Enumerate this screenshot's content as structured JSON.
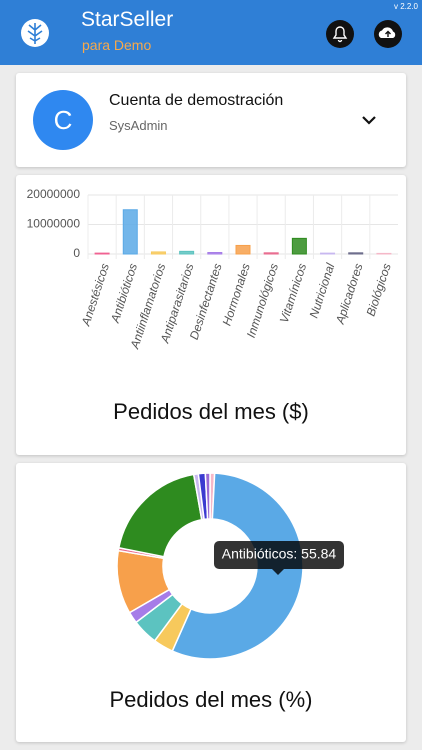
{
  "header": {
    "title": "StarSeller",
    "subtitle": "para Demo",
    "version": "v 2.2.0"
  },
  "account": {
    "initial": "C",
    "name": "Cuenta de demostración",
    "role": "SysAdmin"
  },
  "chart_data": [
    {
      "type": "bar",
      "title": "Pedidos del mes ($)",
      "categories": [
        "Anestésicos",
        "Antibióticos",
        "Antiinflamatorios",
        "Antiparasitarios",
        "Desinfectantes",
        "Hormonales",
        "Inmunológicos",
        "Vitamínicos",
        "Nutricional",
        "Aplicadores",
        "Biológicos"
      ],
      "values": [
        300000,
        15000000,
        700000,
        900000,
        500000,
        2900000,
        400000,
        5300000,
        300000,
        400000,
        200000
      ],
      "colors": [
        "#f06292",
        "#5aa9e6",
        "#f7c95c",
        "#5cc3c0",
        "#a67ce8",
        "#f7a04b",
        "#e86a8e",
        "#2e8b1f",
        "#c8b8f0",
        "#6b6b8a",
        "#f5b8c8"
      ],
      "ylim": [
        0,
        20000000
      ],
      "yticks": [
        0,
        10000000,
        20000000
      ],
      "grid": true
    },
    {
      "type": "pie",
      "title": "Pedidos del mes (%)",
      "values": [
        0.8,
        55.84,
        3.5,
        4.5,
        2,
        11,
        0.5,
        19.06,
        0.8,
        1.2,
        0.8
      ],
      "colors": [
        "#f5b8c8",
        "#5aa9e6",
        "#f7c95c",
        "#5cc3c0",
        "#a67ce8",
        "#f7a04b",
        "#e86a8e",
        "#2e8b1f",
        "#c8b8f0",
        "#3b3bd0",
        "#9a6ad6"
      ],
      "tooltip": "Antibióticos: 55.84"
    }
  ]
}
